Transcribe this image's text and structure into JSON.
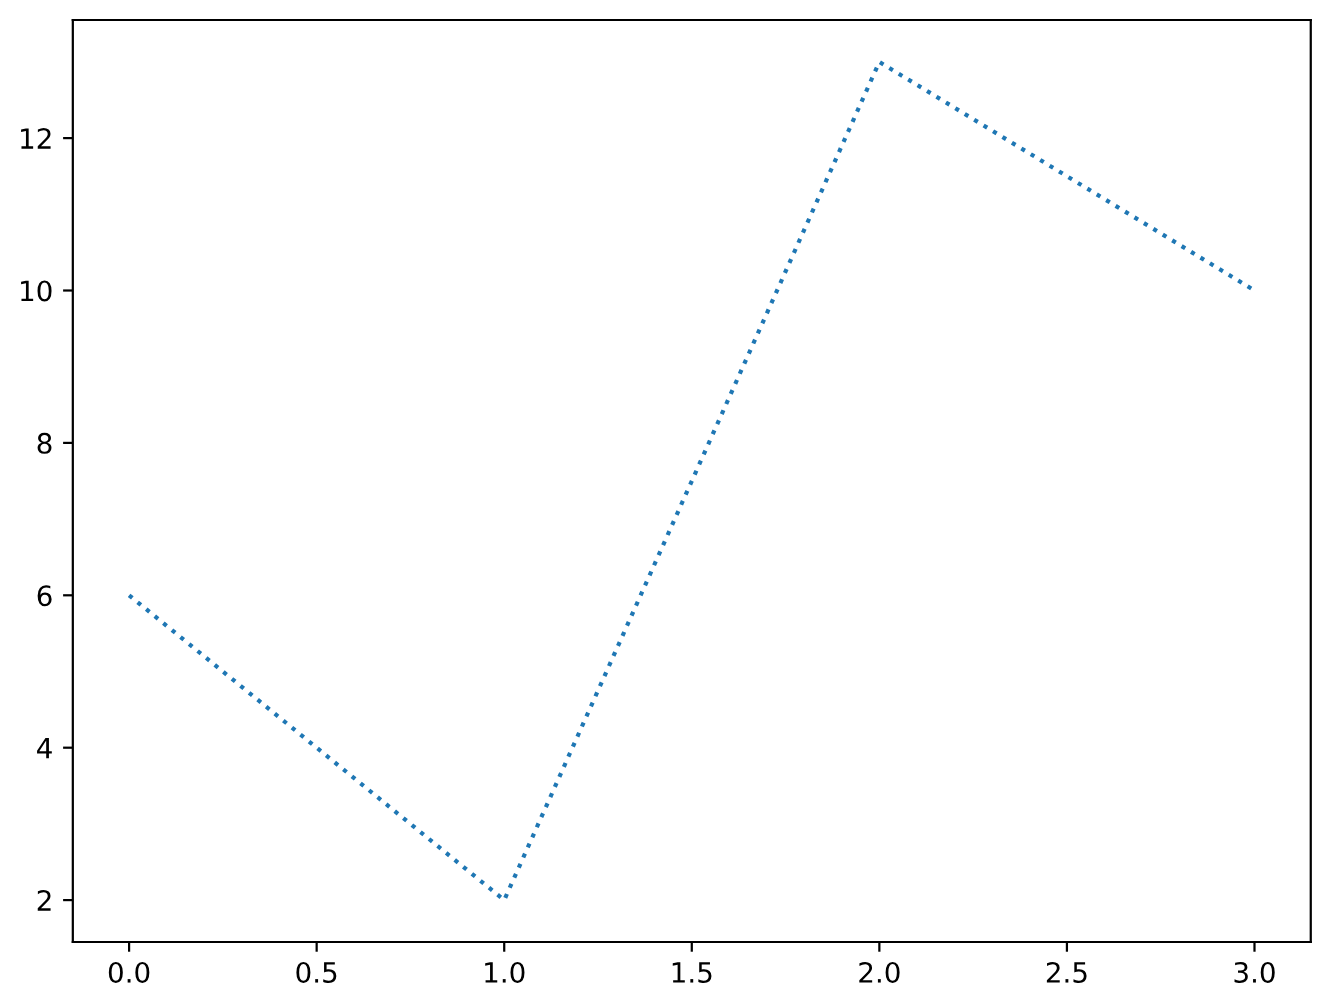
{
  "chart_data": {
    "type": "line",
    "x": [
      0,
      1,
      2,
      3
    ],
    "series": [
      {
        "color": "#1f77b4",
        "values": [
          6,
          2,
          13,
          10
        ]
      }
    ],
    "line_style": "dotted",
    "xlim": [
      -0.15,
      3.15
    ],
    "ylim": [
      1.45,
      13.55
    ],
    "xticks": [
      {
        "value": 0,
        "label": "0.0"
      },
      {
        "value": 0.5,
        "label": "0.5"
      },
      {
        "value": 1,
        "label": "1.0"
      },
      {
        "value": 1.5,
        "label": "1.5"
      },
      {
        "value": 2,
        "label": "2.0"
      },
      {
        "value": 2.5,
        "label": "2.5"
      },
      {
        "value": 3,
        "label": "3.0"
      }
    ],
    "yticks": [
      2,
      4,
      6,
      8,
      10,
      12
    ]
  }
}
